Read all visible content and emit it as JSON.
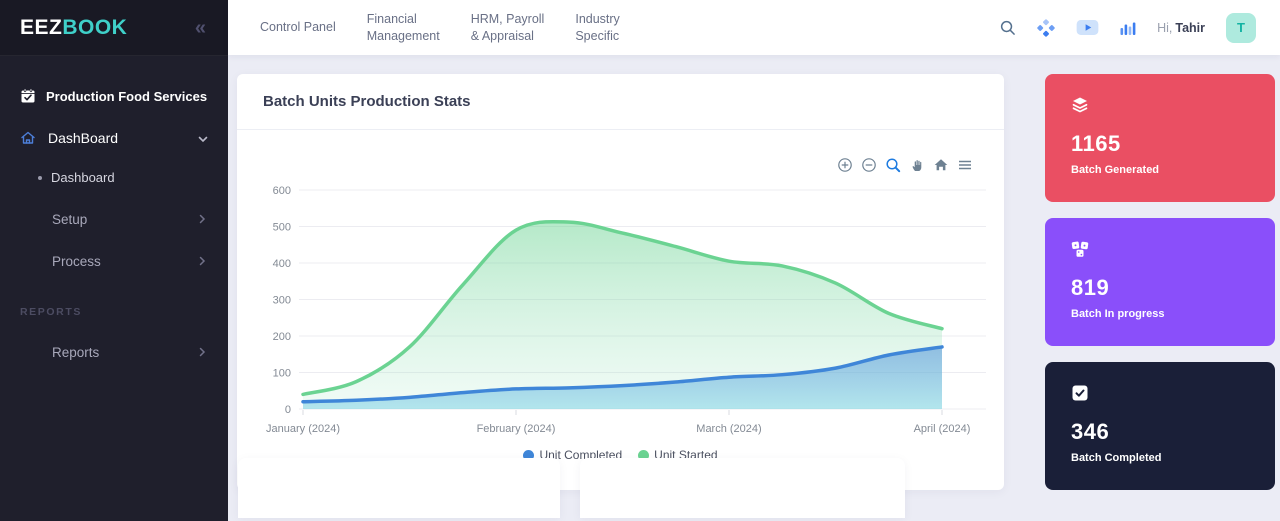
{
  "sidebar": {
    "logo_primary": "EEZ",
    "logo_accent": "BOOK",
    "logo_accent_color": "#3fd0c9",
    "collapse_glyph": "«",
    "module_label": "Production Food Services",
    "dashboard_parent_label": "DashBoard",
    "dashboard_child_label": "Dashboard",
    "setup_label": "Setup",
    "process_label": "Process",
    "reports_section_label": "REPORTS",
    "reports_label": "Reports",
    "bg_color": "#1f1f2c"
  },
  "topbar": {
    "nav": [
      {
        "label": "Control Panel"
      },
      {
        "label": "Financial\nManagement"
      },
      {
        "label": "HRM, Payroll\n& Appraisal"
      },
      {
        "label": "Industry\nSpecific"
      }
    ],
    "greeting_prefix": "Hi,",
    "greeting_name": "Tahir",
    "avatar_letter": "T",
    "avatar_bg": "#aeeade",
    "icon_accent": "#3b7df0"
  },
  "chart_card": {
    "title": "Batch Units Production Stats",
    "toolbar": [
      "zoom-in",
      "zoom-out",
      "selection-zoom",
      "pan",
      "reset-home",
      "menu"
    ]
  },
  "chart_data": {
    "type": "area",
    "title": "Batch Units Production Stats",
    "x_months": [
      0,
      0.25,
      0.5,
      0.75,
      1,
      1.25,
      1.5,
      1.75,
      2,
      2.25,
      2.5,
      2.75,
      3
    ],
    "x_tick_labels": [
      "January (2024)",
      "February (2024)",
      "March (2024)",
      "April (2024)"
    ],
    "y_ticks": [
      0,
      100,
      200,
      300,
      400,
      500,
      600
    ],
    "ylim": [
      0,
      600
    ],
    "grid": "horizontal",
    "legend_position": "bottom",
    "series": [
      {
        "name": "Unit Completed",
        "color": "#3f86d8",
        "values": [
          20,
          24,
          32,
          45,
          55,
          58,
          64,
          74,
          87,
          94,
          112,
          148,
          170
        ],
        "gradient": {
          "from": "#3f86d8",
          "from_opacity": 0.5,
          "to": "#7fd4e4",
          "to_opacity": 0.55
        }
      },
      {
        "name": "Unit Started",
        "color": "#6bd392",
        "values": [
          40,
          75,
          170,
          340,
          490,
          512,
          482,
          445,
          405,
          392,
          345,
          262,
          220
        ],
        "gradient": {
          "from": "#6bd392",
          "from_opacity": 0.5,
          "to": "#a8e6c8",
          "to_opacity": 0.16
        }
      }
    ]
  },
  "stat_cards": [
    {
      "value": "1165",
      "label": "Batch Generated",
      "bg": "#ea4f63",
      "icon": "layers-icon"
    },
    {
      "value": "819",
      "label": "Batch In progress",
      "bg": "#8a4ffa",
      "icon": "dice-icon"
    },
    {
      "value": "346",
      "label": "Batch Completed",
      "bg": "#1a1f38",
      "icon": "checkbox-icon"
    }
  ]
}
